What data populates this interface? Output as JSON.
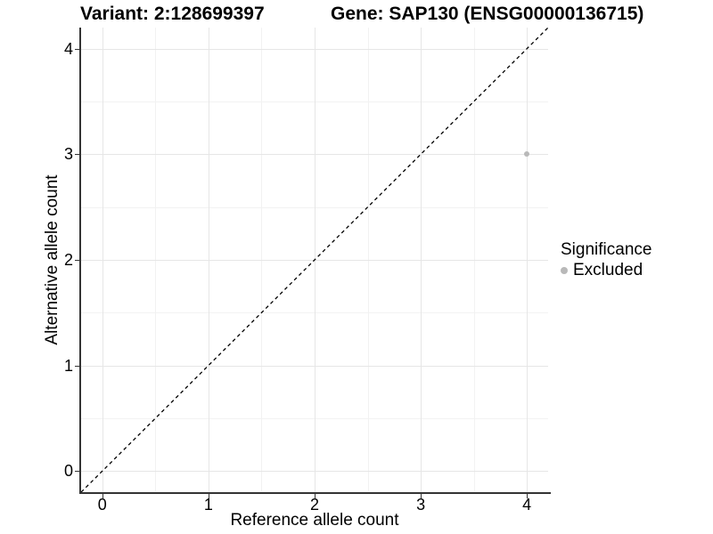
{
  "chart_data": {
    "type": "scatter",
    "title_left": "Variant: 2:128699397",
    "title_right": "Gene: SAP130 (ENSG00000136715)",
    "xlabel": "Reference allele count",
    "ylabel": "Alternative allele count",
    "xlim": [
      -0.2,
      4.2
    ],
    "ylim": [
      -0.2,
      4.2
    ],
    "x_ticks": [
      0,
      1,
      2,
      3,
      4
    ],
    "y_ticks": [
      0,
      1,
      2,
      3,
      4
    ],
    "x_minor_ticks": [
      0.5,
      1.5,
      2.5,
      3.5
    ],
    "y_minor_ticks": [
      0.5,
      1.5,
      2.5,
      3.5
    ],
    "grid": "on",
    "identity_line": {
      "slope": 1,
      "intercept": 0,
      "style": "dashed",
      "color": "#000000"
    },
    "series": [
      {
        "name": "Excluded",
        "color": "#b9b9b9",
        "points": [
          {
            "x": 4,
            "y": 3
          }
        ]
      }
    ],
    "legend": {
      "title": "Significance",
      "position": "right",
      "entries": [
        {
          "label": "Excluded",
          "color": "#b9b9b9",
          "marker": "circle"
        }
      ]
    },
    "colors": {
      "background": "#ffffff",
      "grid_major": "#e6e6e6",
      "grid_minor": "#f2f2f2",
      "axis_line": "#343434",
      "tick": "#333333",
      "text": "#000000"
    }
  }
}
